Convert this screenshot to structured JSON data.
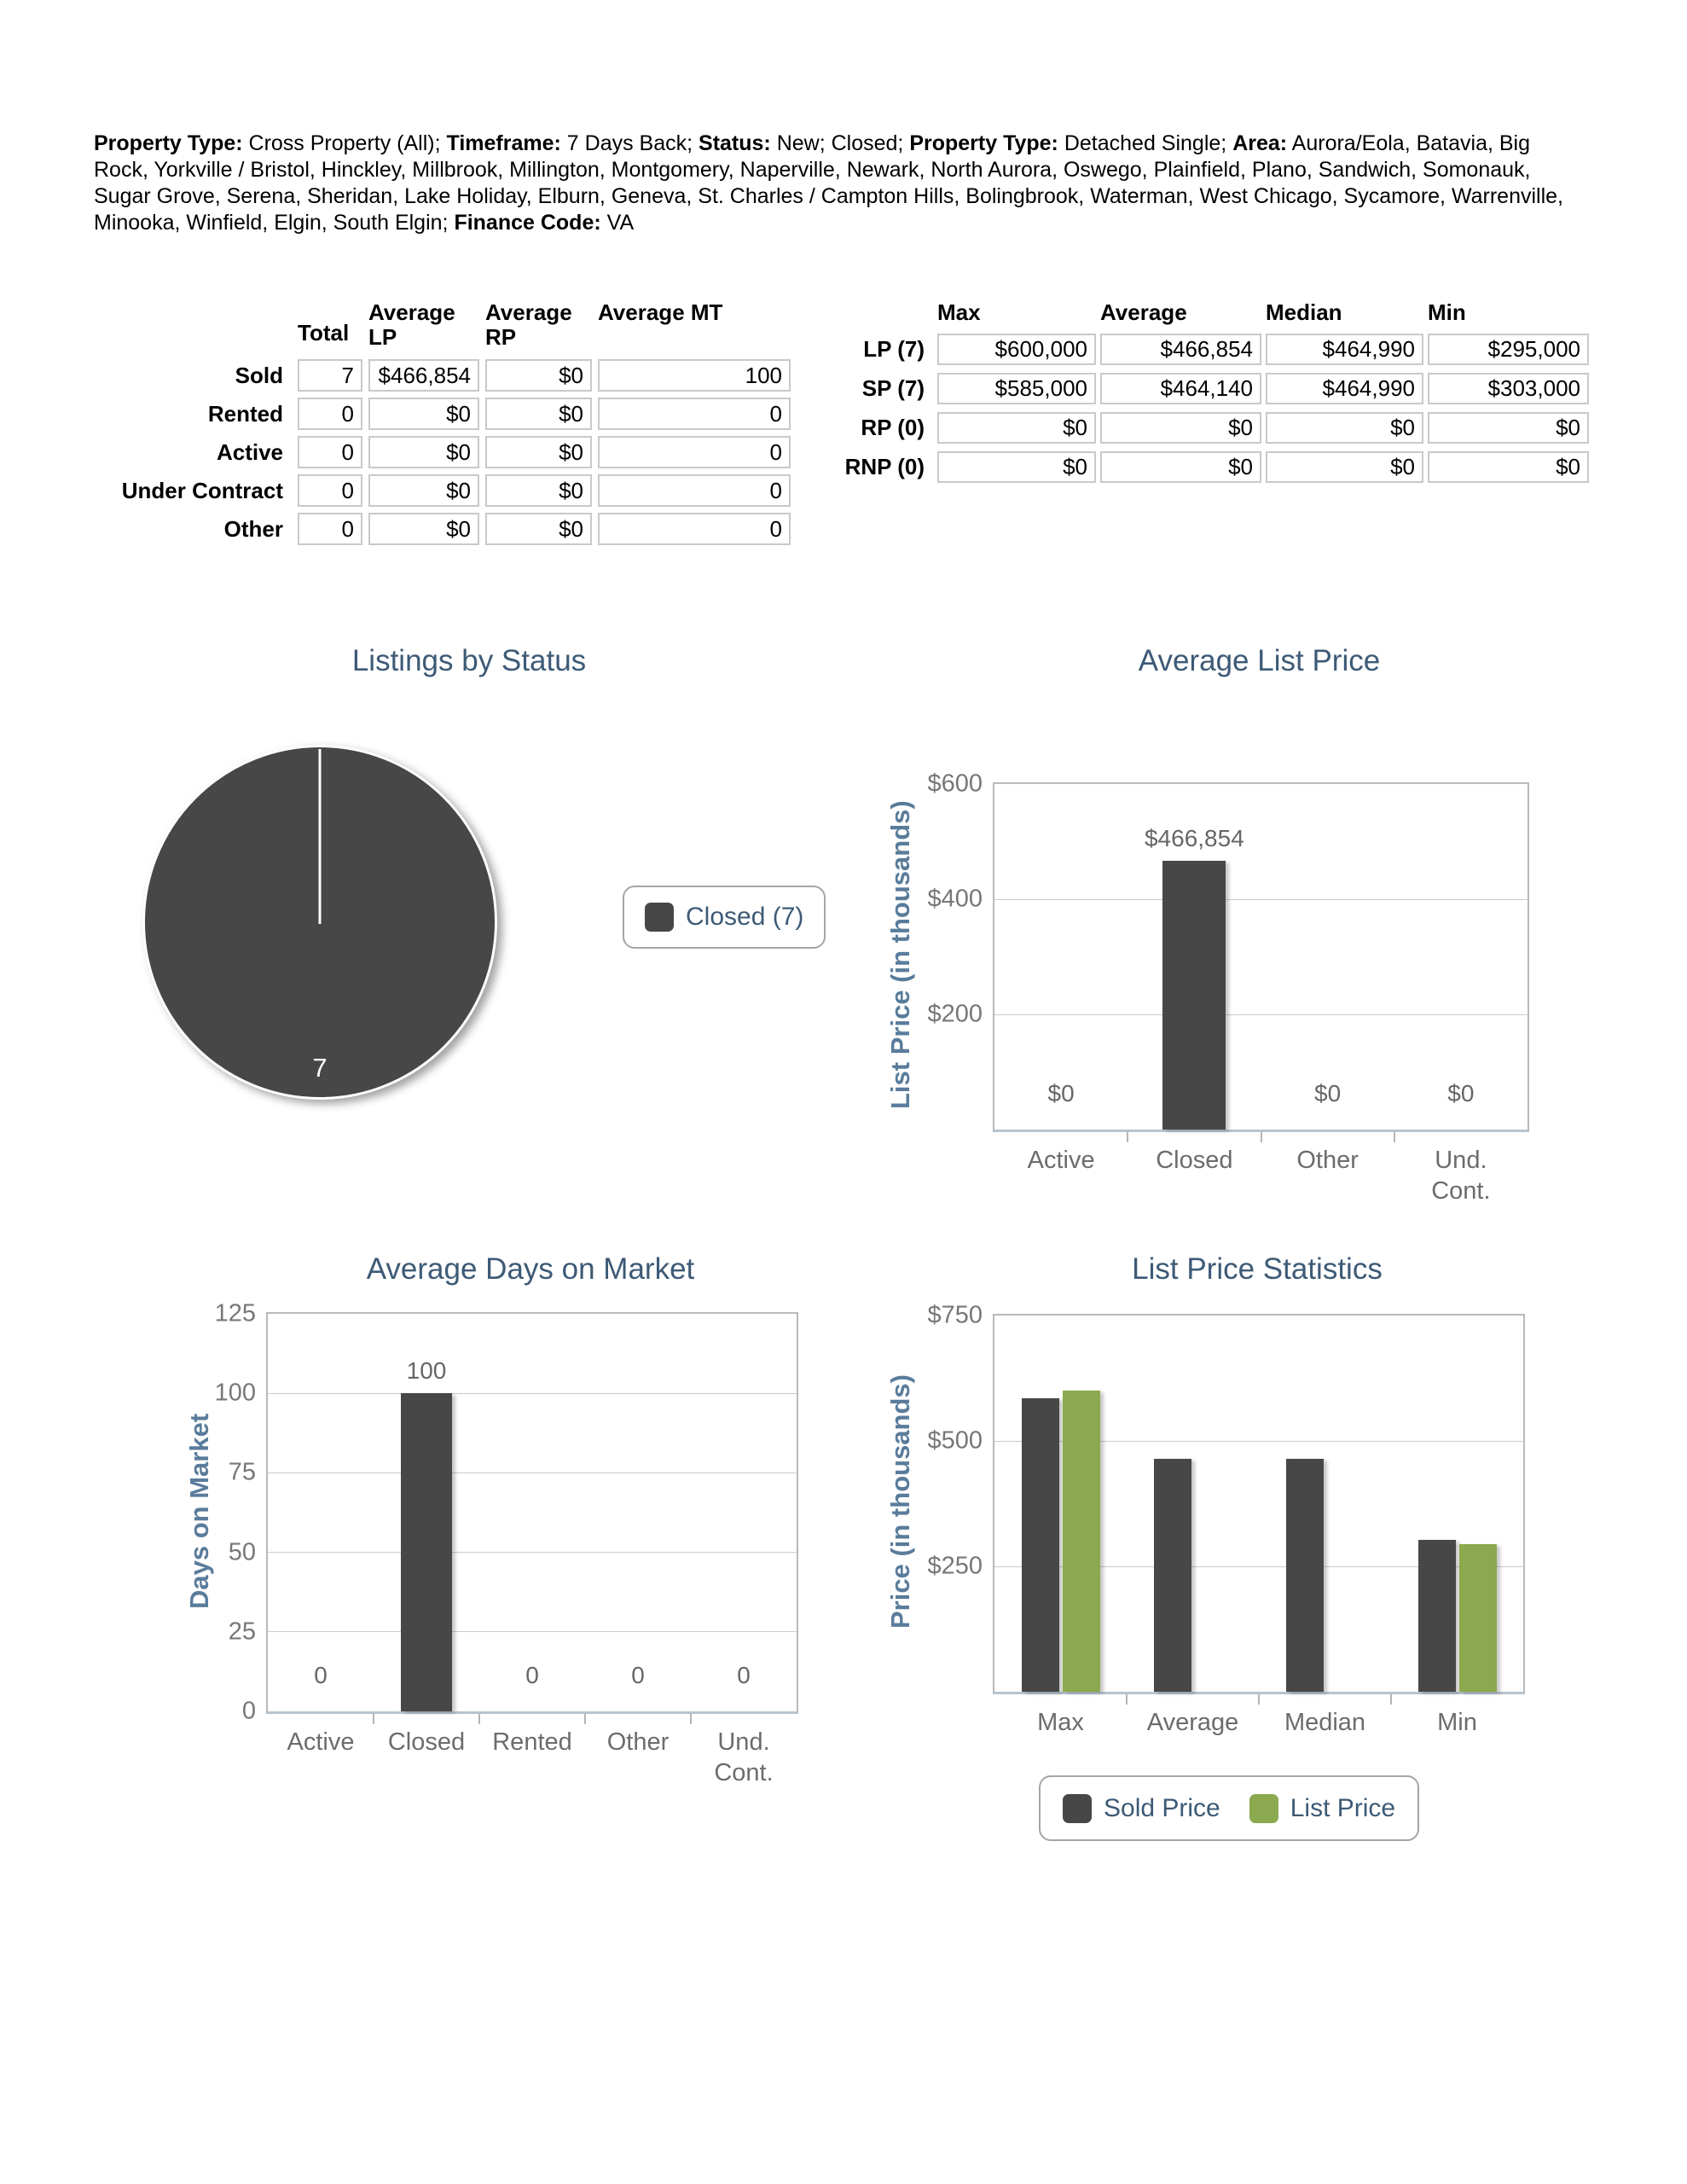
{
  "header": {
    "segments": [
      {
        "label": "Property Type:",
        "value": "Cross Property (All)"
      },
      {
        "label": "Timeframe:",
        "value": "7 Days Back"
      },
      {
        "label": "Status:",
        "value": "New; Closed"
      },
      {
        "label": "Property Type:",
        "value": "Detached Single"
      },
      {
        "label": "Area:",
        "value": "Aurora/Eola, Batavia, Big Rock, Yorkville / Bristol, Hinckley, Millbrook, Millington, Montgomery, Naperville, Newark, North Aurora, Oswego, Plainfield, Plano, Sandwich, Somonauk, Sugar Grove, Serena, Sheridan, Lake Holiday, Elburn, Geneva, St. Charles / Campton Hills, Bolingbrook, Waterman, West Chicago, Sycamore, Warrenville, Minooka, Winfield, Elgin, South Elgin"
      },
      {
        "label": "Finance Code:",
        "value": "VA"
      }
    ]
  },
  "summary_table": {
    "columns": [
      "Total",
      "Average LP",
      "Average RP",
      "Average MT"
    ],
    "rows": [
      {
        "label": "Sold",
        "values": [
          "7",
          "$466,854",
          "$0",
          "100"
        ]
      },
      {
        "label": "Rented",
        "values": [
          "0",
          "$0",
          "$0",
          "0"
        ]
      },
      {
        "label": "Active",
        "values": [
          "0",
          "$0",
          "$0",
          "0"
        ]
      },
      {
        "label": "Under Contract",
        "values": [
          "0",
          "$0",
          "$0",
          "0"
        ]
      },
      {
        "label": "Other",
        "values": [
          "0",
          "$0",
          "$0",
          "0"
        ]
      }
    ]
  },
  "stats_table": {
    "columns": [
      "Max",
      "Average",
      "Median",
      "Min"
    ],
    "rows": [
      {
        "label": "LP (7)",
        "values": [
          "$600,000",
          "$466,854",
          "$464,990",
          "$295,000"
        ]
      },
      {
        "label": "SP (7)",
        "values": [
          "$585,000",
          "$464,140",
          "$464,990",
          "$303,000"
        ]
      },
      {
        "label": "RP (0)",
        "values": [
          "$0",
          "$0",
          "$0",
          "$0"
        ]
      },
      {
        "label": "RNP (0)",
        "values": [
          "$0",
          "$0",
          "$0",
          "$0"
        ]
      }
    ]
  },
  "chart_data": [
    {
      "id": "listings_by_status",
      "type": "pie",
      "title": "Listings by Status",
      "slices": [
        {
          "label": "Closed",
          "value": 7,
          "color": "#474747"
        }
      ],
      "slice_label": "7",
      "legend": [
        {
          "label": "Closed (7)",
          "color": "#474747"
        }
      ],
      "legend_position": "right"
    },
    {
      "id": "avg_list_price",
      "type": "bar",
      "title": "Average List Price",
      "ylabel": "List Price (in thousands)",
      "ymax": 600000,
      "yticks": [
        {
          "value": 600000,
          "label": "$600"
        },
        {
          "value": 400000,
          "label": "$400"
        },
        {
          "value": 200000,
          "label": "$200"
        }
      ],
      "categories": [
        "Active",
        "Closed",
        "Other",
        "Und.\nCont."
      ],
      "values": [
        0,
        466854,
        0,
        0
      ],
      "value_labels": [
        "$0",
        "$466,854",
        "$0",
        "$0"
      ],
      "bar_color": "#474747",
      "grid": true
    },
    {
      "id": "avg_days_on_market",
      "type": "bar",
      "title": "Average Days on Market",
      "ylabel": "Days on Market",
      "ymax": 125,
      "yticks": [
        {
          "value": 125,
          "label": "125"
        },
        {
          "value": 100,
          "label": "100"
        },
        {
          "value": 75,
          "label": "75"
        },
        {
          "value": 50,
          "label": "50"
        },
        {
          "value": 25,
          "label": "25"
        },
        {
          "value": 0,
          "label": "0"
        }
      ],
      "categories": [
        "Active",
        "Closed",
        "Rented",
        "Other",
        "Und.\nCont."
      ],
      "values": [
        0,
        100,
        0,
        0,
        0
      ],
      "value_labels": [
        "0",
        "100",
        "0",
        "0",
        "0"
      ],
      "bar_color": "#474747",
      "grid": true
    },
    {
      "id": "list_price_statistics",
      "type": "grouped-bar",
      "title": "List Price Statistics",
      "ylabel": "Price (in thousands)",
      "ymax": 750000,
      "yticks": [
        {
          "value": 750000,
          "label": "$750"
        },
        {
          "value": 500000,
          "label": "$500"
        },
        {
          "value": 250000,
          "label": "$250"
        }
      ],
      "categories": [
        "Max",
        "Average",
        "Median",
        "Min"
      ],
      "series": [
        {
          "name": "Sold Price",
          "color": "#474747",
          "values": [
            585000,
            464140,
            464990,
            303000
          ]
        },
        {
          "name": "List Price",
          "color": "#8ba94e",
          "values": [
            600000,
            null,
            null,
            295000
          ]
        }
      ],
      "grid": true,
      "legend_position": "bottom"
    }
  ],
  "colors": {
    "title_slate": "#3d5a76",
    "axis_label_slate": "#5a7c9b",
    "tick_gray": "#777777",
    "bar_dark": "#474747",
    "bar_green": "#8ba94e"
  }
}
